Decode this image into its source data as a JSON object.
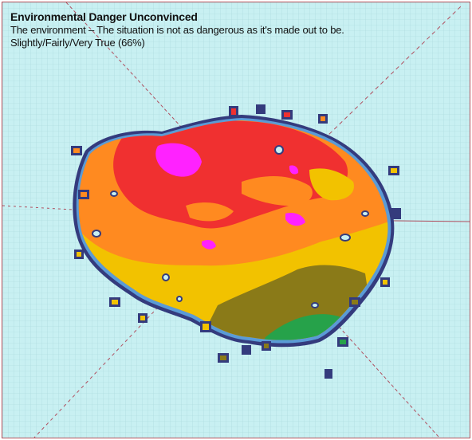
{
  "map": {
    "title": "Environmental Danger Unconvinced",
    "subtitle": "The environment – The situation is not as dangerous as it's made out to be.",
    "caption": "Slightly/Fairly/Very True (66%)"
  },
  "palette": {
    "frame_border": "#b5505a",
    "background": "#c8f0f2",
    "grid": "#a8d6da",
    "guide_line": "#b05060",
    "outline_dark": "#343b7d",
    "outline_light": "#5a9bd6",
    "level_lowest": "#26a24a",
    "level_low": "#8a7a18",
    "level_mid": "#f2c200",
    "level_high": "#ff8a20",
    "level_higher": "#f03030",
    "level_highest": "#ff22ff"
  }
}
